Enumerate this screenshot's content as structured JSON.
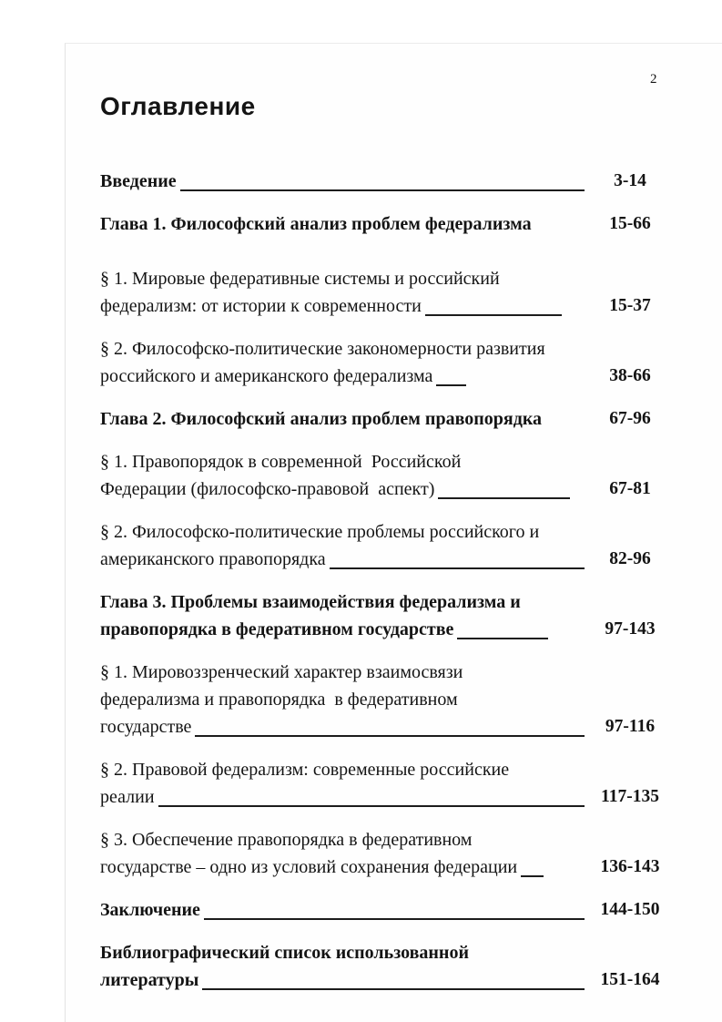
{
  "page_number": "2",
  "title": "Оглавление",
  "toc": {
    "entries": [
      {
        "bold": true,
        "lines": [
          "Введение"
        ],
        "fill": "flex",
        "pages": "3-14"
      },
      {
        "bold": true,
        "lines": [
          "Глава 1. Философский анализ проблем федерализма"
        ],
        "fill": "none",
        "pages": "15-66"
      },
      {
        "bold": false,
        "lines": [
          "§ 1. Мировые федеративные системы и российский",
          "федерализм: от истории к современности"
        ],
        "fill": 150,
        "pages": "15-37"
      },
      {
        "bold": false,
        "lines": [
          "§ 2. Философско-политические закономерности развития",
          "российского и американского федерализма"
        ],
        "fill": 33,
        "pages": "38-66"
      },
      {
        "bold": true,
        "lines": [
          "Глава 2. Философский анализ проблем правопорядка"
        ],
        "fill": "none",
        "pages": "67-96"
      },
      {
        "bold": false,
        "lines": [
          "§ 1. Правопорядок в современной  Российской",
          "Федерации (философско-правовой  аспект)"
        ],
        "fill": 145,
        "pages": "67-81"
      },
      {
        "bold": false,
        "lines": [
          "§ 2. Философско-политические проблемы российского и",
          "американского правопорядка"
        ],
        "fill": "flex",
        "pages": "82-96"
      },
      {
        "bold": true,
        "lines": [
          "Глава 3. Проблемы взаимодействия федерализма и",
          "правопорядка в федеративном государстве"
        ],
        "fill": 100,
        "pages": "97-143"
      },
      {
        "bold": false,
        "lines": [
          "§ 1. Мировоззренческий характер взаимосвязи",
          "федерализма и правопорядка  в федеративном",
          "государстве"
        ],
        "fill": "flex",
        "pages": "97-116"
      },
      {
        "bold": false,
        "lines": [
          "§ 2. Правовой федерализм: современные российские",
          "реалии"
        ],
        "fill": "flex",
        "pages": "117-135"
      },
      {
        "bold": false,
        "lines": [
          "§ 3. Обеспечение правопорядка в федеративном",
          "государстве – одно из условий сохранения федерации"
        ],
        "fill": 25,
        "pages": "136-143"
      },
      {
        "bold": true,
        "lines": [
          "Заключение"
        ],
        "fill": "flex",
        "pages": "144-150"
      },
      {
        "bold": true,
        "lines": [
          "Библиографический список использованной",
          "литературы"
        ],
        "fill": "flex",
        "pages": "151-164"
      }
    ]
  }
}
